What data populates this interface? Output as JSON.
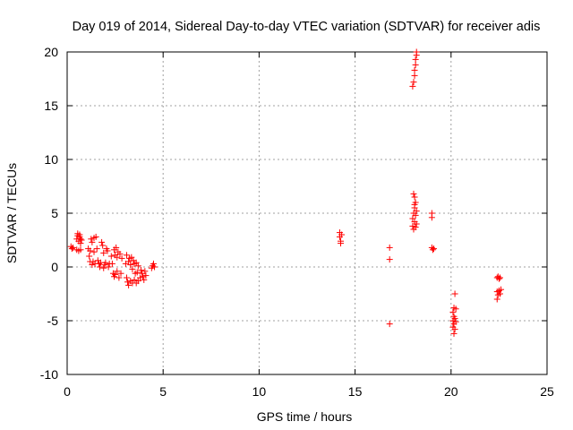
{
  "colors": {
    "series": "#ff0000",
    "grid": "#a0a0a0",
    "axis": "#000000"
  },
  "chart_data": {
    "type": "scatter",
    "title": "Day 019 of 2014, Sidereal Day-to-day VTEC variation (SDTVAR) for receiver adis",
    "xlabel": "GPS time / hours",
    "ylabel": "SDTVAR / TECUs",
    "xlim": [
      0,
      25
    ],
    "ylim": [
      -10,
      20
    ],
    "xticks": [
      0,
      5,
      10,
      15,
      20,
      25
    ],
    "yticks": [
      -10,
      -5,
      0,
      5,
      10,
      15,
      20
    ],
    "grid": true,
    "marker": "+",
    "series": [
      {
        "name": "SDTVAR",
        "points": [
          [
            0.2,
            1.9
          ],
          [
            0.25,
            1.7
          ],
          [
            0.3,
            1.8
          ],
          [
            0.5,
            1.6
          ],
          [
            0.5,
            2.6
          ],
          [
            0.55,
            2.9
          ],
          [
            0.55,
            3.1
          ],
          [
            0.6,
            1.5
          ],
          [
            0.6,
            2.4
          ],
          [
            0.65,
            3.0
          ],
          [
            0.65,
            2.8
          ],
          [
            0.7,
            2.2
          ],
          [
            0.7,
            2.6
          ],
          [
            0.7,
            1.6
          ],
          [
            0.75,
            2.5
          ],
          [
            1.1,
            1.7
          ],
          [
            1.15,
            1.0
          ],
          [
            1.2,
            1.5
          ],
          [
            1.2,
            0.5
          ],
          [
            1.25,
            2.6
          ],
          [
            1.3,
            2.3
          ],
          [
            1.3,
            0.2
          ],
          [
            1.35,
            0.5
          ],
          [
            1.4,
            2.7
          ],
          [
            1.4,
            1.4
          ],
          [
            1.45,
            0.3
          ],
          [
            1.5,
            2.8
          ],
          [
            1.55,
            1.7
          ],
          [
            1.6,
            0.6
          ],
          [
            1.65,
            0.3
          ],
          [
            1.7,
            0.0
          ],
          [
            1.75,
            0.4
          ],
          [
            1.8,
            2.3
          ],
          [
            1.85,
            2.0
          ],
          [
            1.9,
            1.3
          ],
          [
            1.9,
            -0.1
          ],
          [
            1.95,
            0.2
          ],
          [
            2.0,
            0.4
          ],
          [
            2.05,
            1.7
          ],
          [
            2.1,
            1.5
          ],
          [
            2.15,
            0.0
          ],
          [
            2.2,
            0.3
          ],
          [
            2.3,
            1.0
          ],
          [
            2.35,
            0.3
          ],
          [
            2.4,
            -0.6
          ],
          [
            2.45,
            1.6
          ],
          [
            2.45,
            -0.9
          ],
          [
            2.5,
            1.1
          ],
          [
            2.5,
            -0.7
          ],
          [
            2.55,
            1.8
          ],
          [
            2.6,
            0.9
          ],
          [
            2.6,
            -0.4
          ],
          [
            2.65,
            1.4
          ],
          [
            2.7,
            -1.0
          ],
          [
            2.75,
            1.2
          ],
          [
            2.8,
            -0.6
          ],
          [
            2.85,
            0.8
          ],
          [
            3.05,
            0.3
          ],
          [
            3.1,
            -1.0
          ],
          [
            3.1,
            1.1
          ],
          [
            3.15,
            -1.4
          ],
          [
            3.2,
            0.5
          ],
          [
            3.2,
            -1.7
          ],
          [
            3.25,
            0.8
          ],
          [
            3.3,
            -1.3
          ],
          [
            3.3,
            0.2
          ],
          [
            3.35,
            0.9
          ],
          [
            3.4,
            -1.5
          ],
          [
            3.4,
            -0.2
          ],
          [
            3.45,
            0.6
          ],
          [
            3.5,
            -1.2
          ],
          [
            3.5,
            0.3
          ],
          [
            3.55,
            -0.6
          ],
          [
            3.6,
            0.4
          ],
          [
            3.6,
            -1.5
          ],
          [
            3.65,
            -0.5
          ],
          [
            3.7,
            0.1
          ],
          [
            3.7,
            -1.3
          ],
          [
            3.8,
            -1.0
          ],
          [
            3.85,
            -0.3
          ],
          [
            3.9,
            -0.6
          ],
          [
            3.95,
            -0.9
          ],
          [
            4.0,
            -1.2
          ],
          [
            4.05,
            -0.4
          ],
          [
            4.1,
            -0.8
          ],
          [
            4.4,
            -0.1
          ],
          [
            4.45,
            0.1
          ],
          [
            4.5,
            0.3
          ],
          [
            4.55,
            0.0
          ],
          [
            14.2,
            3.2
          ],
          [
            14.2,
            2.8
          ],
          [
            14.25,
            2.4
          ],
          [
            14.25,
            2.2
          ],
          [
            14.3,
            3.0
          ],
          [
            16.8,
            1.8
          ],
          [
            16.8,
            0.7
          ],
          [
            16.8,
            -5.3
          ],
          [
            18.0,
            16.8
          ],
          [
            18.0,
            4.5
          ],
          [
            18.0,
            3.8
          ],
          [
            18.05,
            17.2
          ],
          [
            18.05,
            6.8
          ],
          [
            18.05,
            5.0
          ],
          [
            18.05,
            3.5
          ],
          [
            18.1,
            17.8
          ],
          [
            18.1,
            6.5
          ],
          [
            18.1,
            4.2
          ],
          [
            18.1,
            18.3
          ],
          [
            18.1,
            5.5
          ],
          [
            18.15,
            18.8
          ],
          [
            18.15,
            6.0
          ],
          [
            18.15,
            4.8
          ],
          [
            18.15,
            19.3
          ],
          [
            18.2,
            19.7
          ],
          [
            18.2,
            5.2
          ],
          [
            18.2,
            4.0
          ],
          [
            18.2,
            20.0
          ],
          [
            18.15,
            3.7
          ],
          [
            18.1,
            5.8
          ],
          [
            19.0,
            5.0
          ],
          [
            19.0,
            4.6
          ],
          [
            19.0,
            1.8
          ],
          [
            19.05,
            1.6
          ],
          [
            19.1,
            1.7
          ],
          [
            20.1,
            -4.2
          ],
          [
            20.1,
            -5.0
          ],
          [
            20.1,
            -5.6
          ],
          [
            20.15,
            -3.8
          ],
          [
            20.15,
            -4.6
          ],
          [
            20.15,
            -5.3
          ],
          [
            20.15,
            -6.2
          ],
          [
            20.2,
            -2.5
          ],
          [
            20.2,
            -4.8
          ],
          [
            20.2,
            -5.8
          ],
          [
            20.25,
            -3.9
          ],
          [
            20.25,
            -5.1
          ],
          [
            22.4,
            -1.0
          ],
          [
            22.4,
            -2.3
          ],
          [
            22.4,
            -3.0
          ],
          [
            22.45,
            -0.9
          ],
          [
            22.45,
            -2.6
          ],
          [
            22.5,
            -1.1
          ],
          [
            22.5,
            -2.2
          ],
          [
            22.55,
            -1.0
          ],
          [
            22.55,
            -2.5
          ],
          [
            22.6,
            -2.1
          ]
        ]
      }
    ]
  }
}
